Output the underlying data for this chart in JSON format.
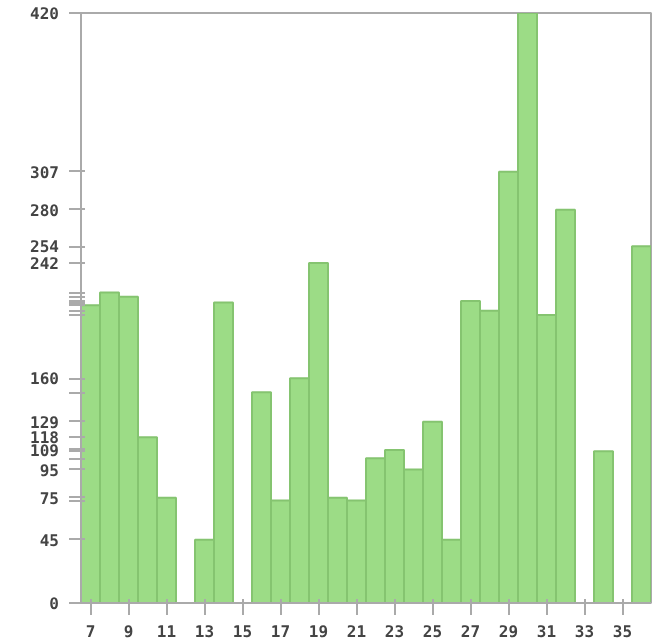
{
  "chart_data": {
    "type": "bar",
    "x": [
      7,
      8,
      9,
      10,
      11,
      12,
      13,
      14,
      15,
      16,
      17,
      18,
      19,
      20,
      21,
      22,
      23,
      24,
      25,
      26,
      27,
      28,
      29,
      30,
      31,
      32,
      33,
      34,
      35,
      36
    ],
    "values": [
      212,
      221,
      218,
      118,
      75,
      null,
      45,
      214,
      null,
      150,
      73,
      160,
      242,
      75,
      73,
      103,
      109,
      95,
      129,
      45,
      215,
      208,
      307,
      420,
      205,
      280,
      null,
      108,
      null,
      254
    ],
    "color": "#9cdc86",
    "xlim": [
      6.5,
      36.5
    ],
    "xticks": [
      7,
      9,
      11,
      13,
      15,
      17,
      19,
      21,
      23,
      25,
      27,
      29,
      31,
      33,
      35
    ],
    "ylim": [
      0,
      420
    ],
    "yticks": [
      0,
      45,
      {
        "value": 73,
        "label": null
      },
      75,
      95,
      {
        "value": 103,
        "label": null
      },
      {
        "value": 108,
        "label": null
      },
      109,
      118,
      129,
      {
        "value": 150,
        "label": null
      },
      160,
      {
        "value": 205,
        "label": null
      },
      {
        "value": 208,
        "label": null
      },
      {
        "value": 212,
        "label": null
      },
      {
        "value": 214,
        "label": null
      },
      {
        "value": 215,
        "label": null
      },
      {
        "value": 218,
        "label": null
      },
      {
        "value": 221,
        "label": null
      },
      242,
      254,
      280,
      307,
      420
    ],
    "grid": false
  }
}
